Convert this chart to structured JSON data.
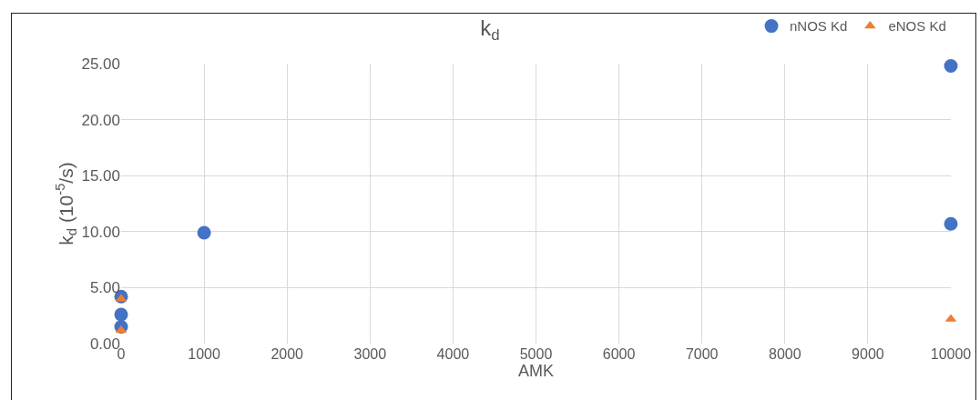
{
  "chart_data": {
    "type": "scatter",
    "title": "k$_{d}$",
    "xlabel": "AMK",
    "ylabel": "k$_{d}$ (10$^{-5}$/s)",
    "series": [
      {
        "name": "nNOS Kd",
        "color": "#4472c4",
        "marker": "circle",
        "x": [
          0,
          0,
          0,
          1000,
          10000,
          10000
        ],
        "values": [
          4.2,
          2.6,
          1.5,
          9.9,
          24.8,
          10.7
        ]
      },
      {
        "name": "eNOS Kd",
        "color": "#ed7d31",
        "marker": "triangle",
        "x": [
          0,
          0,
          10000
        ],
        "values": [
          4.0,
          1.2,
          2.2
        ]
      }
    ],
    "xlim": [
      0,
      10000
    ],
    "xticks": [
      0,
      1000,
      2000,
      3000,
      4000,
      5000,
      6000,
      7000,
      8000,
      9000,
      10000
    ],
    "ylim": [
      0,
      25
    ],
    "yticks": [
      {
        "value": 0,
        "label": "0.00"
      },
      {
        "value": 5,
        "label": "5.00"
      },
      {
        "value": 10,
        "label": "10.00"
      },
      {
        "value": 15,
        "label": "15.00"
      },
      {
        "value": 20,
        "label": "20.00"
      },
      {
        "value": 25,
        "label": "25.00"
      }
    ],
    "grid": true,
    "legend": "top right"
  }
}
